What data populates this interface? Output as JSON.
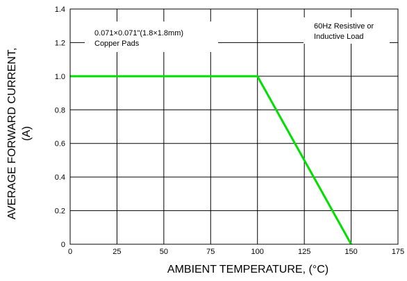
{
  "chart_data": {
    "type": "line",
    "title": "",
    "xlabel": "AMBIENT TEMPERATURE, (°C)",
    "ylabel_lines": [
      "AVERAGE FORWARD CURRENT,",
      "(A)"
    ],
    "xlim": [
      0,
      175
    ],
    "ylim": [
      0,
      1.4
    ],
    "x_ticks": [
      0,
      25,
      50,
      75,
      100,
      125,
      150,
      175
    ],
    "x_tick_labels": [
      "0",
      "25",
      "50",
      "75",
      "100",
      "125",
      "150",
      "175"
    ],
    "y_ticks": [
      0,
      0.2,
      0.4,
      0.6,
      0.8,
      1.0,
      1.2,
      1.4
    ],
    "y_tick_labels": [
      "0",
      "0.2",
      "0.4",
      "0.6",
      "0.8",
      "1.0",
      "1.2",
      "1.4"
    ],
    "grid": true,
    "series": [
      {
        "color": "#00e000",
        "points": [
          [
            0,
            1.0
          ],
          [
            100,
            1.0
          ],
          [
            150,
            0.0
          ]
        ]
      }
    ],
    "annotations": [
      {
        "lines": [
          "0.071×0.071\"(1.8×1.8mm)",
          "Copper Pads"
        ]
      },
      {
        "lines": [
          "60Hz Resistive or",
          "Inductive Load"
        ]
      }
    ]
  }
}
